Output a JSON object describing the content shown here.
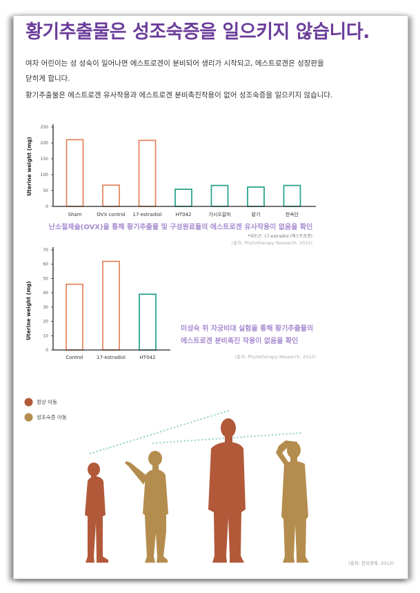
{
  "title": "황기추출물은 성조숙증을 일으키지 않습니다.",
  "intro": {
    "lines": [
      "여자 어린이는 성 성숙이 일어나면 에스트로겐이 분비되어 생리가 시작되고, 에스트로겐은 성장판을",
      "닫히게 합니다.",
      "황기추출물은 에스트로겐 유사작용과 에스트로겐 분비촉진작용이 없어 성조숙증을 일으키지 않습니다."
    ]
  },
  "chart_data": [
    {
      "type": "bar",
      "categories": [
        "Sham",
        "OVX control",
        "17-estradiol",
        "HT042",
        "가시오갈피",
        "황기",
        "한속단"
      ],
      "values": [
        210,
        67,
        208,
        54,
        66,
        61,
        66
      ],
      "bar_colors": [
        "#e4815a",
        "#e4815a",
        "#e4815a",
        "#1f9f85",
        "#1f9f85",
        "#1f9f85",
        "#1f9f85"
      ],
      "xlabel": "",
      "ylabel": "Uterine weight (mg)",
      "ylim": [
        0,
        250
      ],
      "yticks": [
        0,
        50,
        100,
        150,
        200,
        250
      ],
      "grid": false,
      "caption": "난소절제술(OVX)을 통해 황기추출물 및 구성원료들의 에스트로겐 유사작용이 없음을 확인",
      "note": "*대조군: 17-estradiol (에스트로겐)",
      "source": "(출처: Phytotherapy Research, 2012)"
    },
    {
      "type": "bar",
      "categories": [
        "Control",
        "17-estradiol",
        "HT042"
      ],
      "values": [
        46,
        62,
        39
      ],
      "bar_colors": [
        "#e4815a",
        "#e4815a",
        "#1f9f85"
      ],
      "xlabel": "",
      "ylabel": "Uterine weight (mg)",
      "ylim": [
        0,
        70
      ],
      "yticks": [
        0,
        10,
        20,
        30,
        40,
        50,
        60,
        70
      ],
      "grid": false,
      "caption_lines": [
        "미성숙 쥐 자궁비대 실험을 통해 황기추출물의",
        "에스트로겐 분비촉진 작용이 없음을 확인"
      ],
      "source": "(출처: Phytotherapy Research, 2012)"
    }
  ],
  "legend": {
    "items": [
      {
        "label": "정상 아동",
        "color": "#b2593a"
      },
      {
        "label": "성조숙증 아동",
        "color": "#b48d4e"
      }
    ]
  },
  "illustration": {
    "source": "(출처: 한국경제, 2012)"
  },
  "colors": {
    "title": "#6b3d9a",
    "caption": "#a68bd0",
    "dotted_line": "#a6dacf",
    "axis": "#222222"
  }
}
